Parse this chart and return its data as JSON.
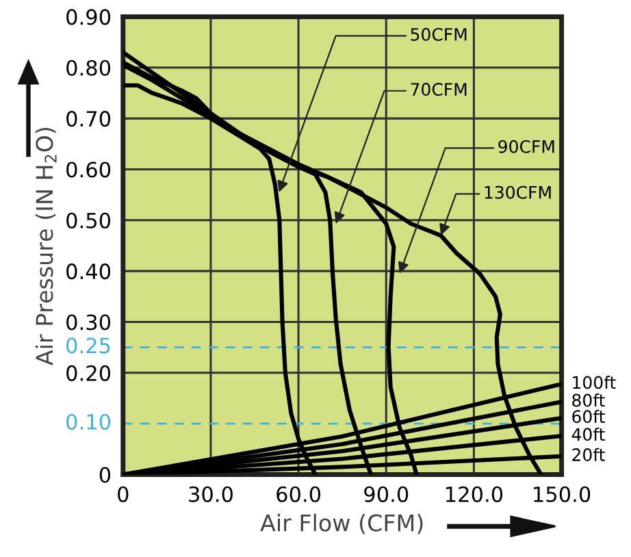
{
  "chart_data": {
    "type": "line",
    "xlabel": "Air Flow (CFM)",
    "ylabel": "Air Pressure (IN H$_{2}$O)",
    "xlim": [
      0,
      150
    ],
    "xticks": [
      {
        "value": 0,
        "label": "0"
      },
      {
        "value": 30,
        "label": "30.0"
      },
      {
        "value": 60,
        "label": "60.0"
      },
      {
        "value": 90,
        "label": "90.0"
      },
      {
        "value": 120,
        "label": "120.0"
      },
      {
        "value": 150,
        "label": "150.0"
      }
    ],
    "ylim": [
      0,
      0.9
    ],
    "yticks": [
      {
        "value": 0,
        "label": "0"
      },
      {
        "value": 0.2,
        "label": "0.20"
      },
      {
        "value": 0.3,
        "label": "0.30"
      },
      {
        "value": 0.4,
        "label": "0.40"
      },
      {
        "value": 0.5,
        "label": "0.50"
      },
      {
        "value": 0.6,
        "label": "0.60"
      },
      {
        "value": 0.7,
        "label": "0.70"
      },
      {
        "value": 0.8,
        "label": "0.80"
      },
      {
        "value": 0.9,
        "label": "0.90"
      }
    ],
    "grid": true,
    "marker": "none",
    "line_style": "solid",
    "ref_lines": [
      {
        "axis": "y",
        "value": 0.25,
        "label": "0.25",
        "color": "#3fb0e0",
        "line_style": "dashed"
      },
      {
        "axis": "y",
        "value": 0.1,
        "label": "0.10",
        "color": "#3fb0e0",
        "line_style": "dashed"
      }
    ],
    "series": [
      {
        "color": "#000000",
        "x": [
          0,
          5,
          10,
          20,
          30,
          40,
          47,
          50,
          52,
          53.5,
          54,
          54.5,
          55.5,
          57.5,
          60,
          63,
          65.8
        ],
        "values": [
          0.765,
          0.765,
          0.75,
          0.73,
          0.7,
          0.665,
          0.64,
          0.62,
          0.57,
          0.5,
          0.4,
          0.3,
          0.2,
          0.12,
          0.07,
          0.03,
          0
        ]
      },
      {
        "color": "#000000",
        "x": [
          0,
          10,
          20,
          25,
          30,
          40,
          50,
          60,
          65.8,
          69.2,
          70.8,
          71.7,
          72.8,
          74.4,
          77.5,
          81.4,
          84.8
        ],
        "values": [
          0.81,
          0.78,
          0.755,
          0.74,
          0.71,
          0.67,
          0.635,
          0.605,
          0.59,
          0.555,
          0.5,
          0.395,
          0.306,
          0.217,
          0.127,
          0.056,
          0
        ]
      },
      {
        "color": "#000000",
        "x": [
          0,
          10,
          20,
          30,
          40,
          50,
          60,
          70,
          81.4,
          90,
          92.6,
          91.5,
          90.8,
          91.5,
          94.6,
          98.5,
          100.4
        ],
        "values": [
          0.805,
          0.775,
          0.74,
          0.705,
          0.67,
          0.635,
          0.605,
          0.585,
          0.555,
          0.493,
          0.448,
          0.35,
          0.252,
          0.172,
          0.092,
          0.038,
          0
        ]
      },
      {
        "color": "#000000",
        "x": [
          0,
          10,
          20,
          30,
          40,
          50,
          60,
          70,
          80,
          90,
          98.5,
          108.7,
          114.1,
          122,
          127.4,
          129,
          127.8,
          128.2,
          130.5,
          134.4,
          139,
          143
        ],
        "values": [
          0.83,
          0.79,
          0.75,
          0.71,
          0.67,
          0.64,
          0.61,
          0.585,
          0.555,
          0.525,
          0.493,
          0.47,
          0.435,
          0.395,
          0.35,
          0.315,
          0.27,
          0.217,
          0.154,
          0.092,
          0.038,
          0
        ]
      },
      {
        "name": "100ft",
        "color": "#000000",
        "x": [
          0,
          75,
          150
        ],
        "values": [
          0,
          0.075,
          0.178
        ]
      },
      {
        "name": "80ft",
        "color": "#000000",
        "x": [
          0,
          75,
          150
        ],
        "values": [
          0,
          0.06,
          0.143
        ]
      },
      {
        "name": "60ft",
        "color": "#000000",
        "x": [
          0,
          75,
          150
        ],
        "values": [
          0,
          0.046,
          0.111
        ]
      },
      {
        "name": "40ft",
        "color": "#000000",
        "x": [
          0,
          75,
          150
        ],
        "values": [
          0,
          0.031,
          0.076
        ]
      },
      {
        "name": "20ft",
        "color": "#000000",
        "x": [
          0,
          75,
          150
        ],
        "values": [
          0,
          0.015,
          0.036
        ]
      }
    ],
    "annotations": [
      {
        "text": "50CFM",
        "x": 53.3,
        "y": 0.555
      },
      {
        "text": "70CFM",
        "x": 72.8,
        "y": 0.493
      },
      {
        "text": "90CFM",
        "x": 94.6,
        "y": 0.395
      },
      {
        "text": "130CFM",
        "x": 108.7,
        "y": 0.47
      }
    ]
  }
}
